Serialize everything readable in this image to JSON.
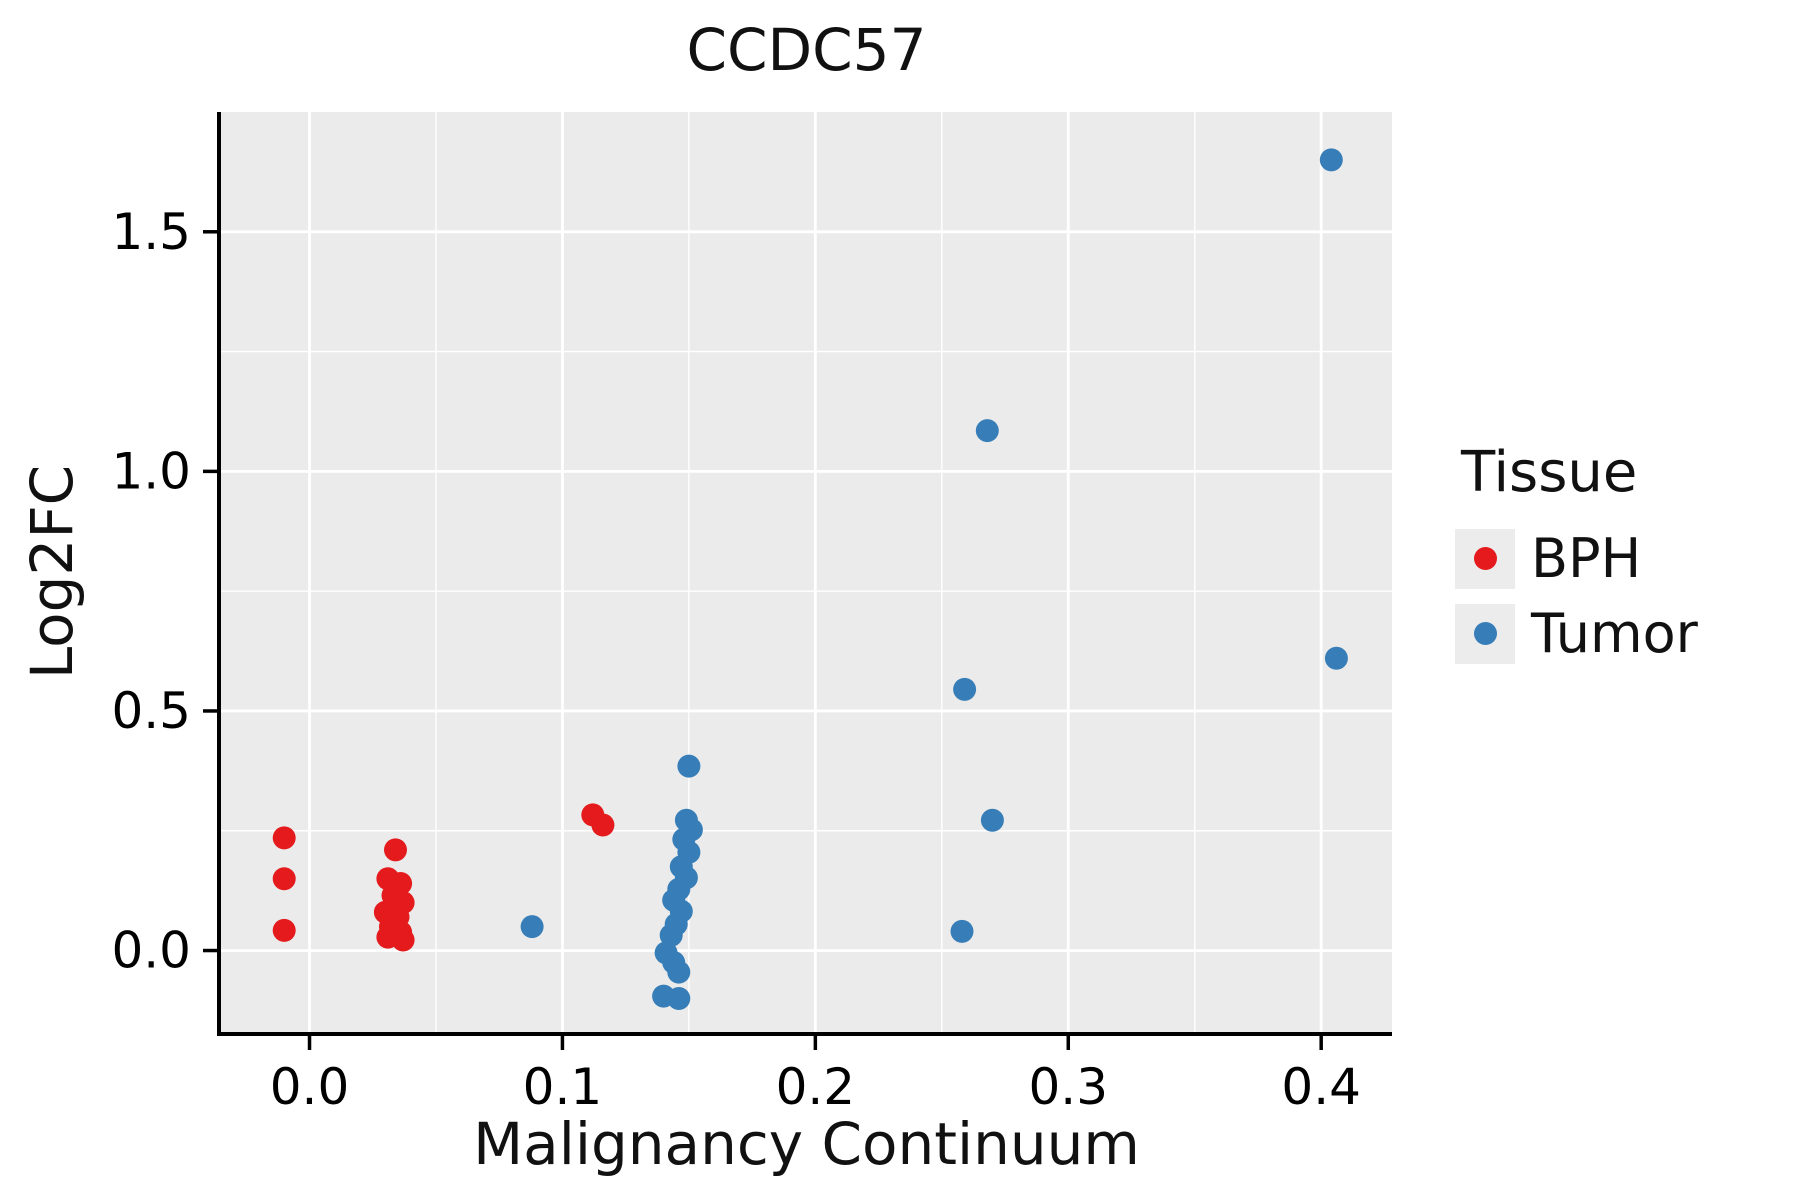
{
  "title": "CCDC57",
  "x_axis_label": "Malignancy Continuum",
  "y_axis_label": "Log2FC",
  "legend": {
    "title": "Tissue",
    "entries": [
      {
        "label": "BPH",
        "color": "#e41a1c"
      },
      {
        "label": "Tumor",
        "color": "#377eb8"
      }
    ]
  },
  "style": {
    "panel_bg": "#ebebeb",
    "grid_color": "#ffffff",
    "axis_color": "#000000",
    "text_color": "#000000",
    "legend_key_bg": "#ececec",
    "point_radius": 11.5
  },
  "chart_data": {
    "type": "scatter",
    "title": "CCDC57",
    "xlabel": "Malignancy Continuum",
    "ylabel": "Log2FC",
    "xlim": [
      -0.035,
      0.428
    ],
    "ylim": [
      -0.17,
      1.75
    ],
    "x_ticks": [
      0.0,
      0.1,
      0.2,
      0.3,
      0.4
    ],
    "x_tick_labels": [
      "0.0",
      "0.1",
      "0.2",
      "0.3",
      "0.4"
    ],
    "x_minor_ticks": [
      0.05,
      0.15,
      0.25,
      0.35
    ],
    "y_ticks": [
      0.0,
      0.5,
      1.0,
      1.5
    ],
    "y_tick_labels": [
      "0.0",
      "0.5",
      "1.0",
      "1.5"
    ],
    "y_minor_ticks": [
      0.25,
      0.75,
      1.25
    ],
    "grid": true,
    "legend_position": "right",
    "series": [
      {
        "name": "BPH",
        "color": "#e41a1c",
        "points": [
          [
            -0.01,
            0.235
          ],
          [
            -0.01,
            0.15
          ],
          [
            -0.01,
            0.042
          ],
          [
            0.034,
            0.21
          ],
          [
            0.031,
            0.15
          ],
          [
            0.036,
            0.14
          ],
          [
            0.033,
            0.115
          ],
          [
            0.037,
            0.1
          ],
          [
            0.03,
            0.08
          ],
          [
            0.035,
            0.07
          ],
          [
            0.032,
            0.05
          ],
          [
            0.036,
            0.038
          ],
          [
            0.031,
            0.028
          ],
          [
            0.037,
            0.022
          ],
          [
            0.112,
            0.283
          ],
          [
            0.116,
            0.262
          ]
        ]
      },
      {
        "name": "Tumor",
        "color": "#377eb8",
        "points": [
          [
            0.088,
            0.05
          ],
          [
            0.15,
            0.385
          ],
          [
            0.149,
            0.272
          ],
          [
            0.151,
            0.252
          ],
          [
            0.148,
            0.232
          ],
          [
            0.15,
            0.205
          ],
          [
            0.147,
            0.175
          ],
          [
            0.149,
            0.152
          ],
          [
            0.146,
            0.128
          ],
          [
            0.144,
            0.105
          ],
          [
            0.147,
            0.082
          ],
          [
            0.145,
            0.055
          ],
          [
            0.143,
            0.032
          ],
          [
            0.141,
            -0.005
          ],
          [
            0.144,
            -0.025
          ],
          [
            0.146,
            -0.045
          ],
          [
            0.14,
            -0.095
          ],
          [
            0.146,
            -0.1
          ],
          [
            0.258,
            0.04
          ],
          [
            0.259,
            0.545
          ],
          [
            0.268,
            1.085
          ],
          [
            0.27,
            0.272
          ],
          [
            0.404,
            1.65
          ],
          [
            0.406,
            0.61
          ]
        ]
      }
    ]
  }
}
